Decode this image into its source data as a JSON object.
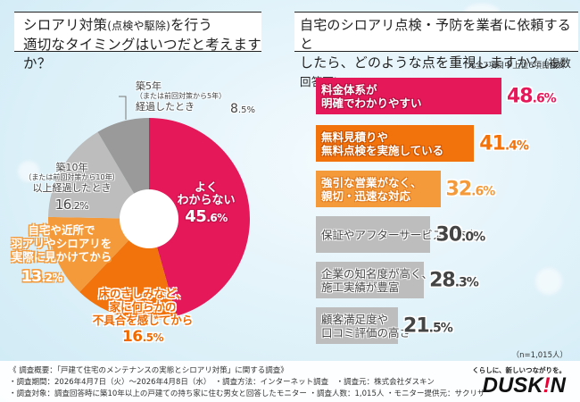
{
  "left_panel": {
    "title_line1_a": "シロアリ対策",
    "title_line1_paren": "(点検や駆除)",
    "title_line1_b": "を行う",
    "title_line2": "適切なタイミングはいつだと考えますか？"
  },
  "right_panel": {
    "title_line1": "自宅のシロアリ点検・予防を業者に依頼すると",
    "title_line2_a": "したら、どのような点を重視しますか？",
    "title_line2_paren": "(複数回答可)",
    "extract_note": "※全7項目中上位6項目抜粋",
    "sample_note": "（n=1,015人）"
  },
  "chart_data": [
    {
      "type": "pie",
      "title": "シロアリ対策(点検や駆除)を行う適切なタイミングはいつだと考えますか？",
      "donut": true,
      "start": "12 o'clock, clockwise",
      "unit": "%",
      "slices": [
        {
          "label_lines": [
            "よく",
            "わからない"
          ],
          "value": 45.6,
          "int": "45",
          "dec": ".6%",
          "color": "#e5185a"
        },
        {
          "label_lines": [
            "床のきしみなど、",
            "家に何らかの",
            "不具合を感じてから"
          ],
          "value": 16.5,
          "int": "16",
          "dec": ".5%",
          "color": "#f2720c"
        },
        {
          "label_lines": [
            "自宅や近所で",
            "羽アリやシロアリを",
            "実際に見かけてから"
          ],
          "value": 13.2,
          "int": "13",
          "dec": ".2%",
          "color": "#f59a3a"
        },
        {
          "label_lines": [
            "築10年",
            "（または前回対策から10年）",
            "以上経過したとき"
          ],
          "value": 16.2,
          "int": "16",
          "dec": ".2%",
          "color": "#bdbdbd"
        },
        {
          "label_lines": [
            "築5年",
            "（または前回対策から5年）",
            "経過したとき"
          ],
          "value": 8.5,
          "int": "8",
          "dec": ".5%",
          "color": "#9a9a9a"
        }
      ]
    },
    {
      "type": "bar",
      "orientation": "horizontal",
      "title": "自宅のシロアリ点検・予防を業者に依頼するとしたら、どのような点を重視しますか？(複数回答可)",
      "unit": "%",
      "xlim": [
        0,
        50
      ],
      "bars": [
        {
          "label_lines": [
            "料金体系が",
            "明確でわかりやすい"
          ],
          "value": 48.6,
          "int": "48",
          "dec": ".6%",
          "color": "#e5185a",
          "value_color": "#e5185a"
        },
        {
          "label_lines": [
            "無料見積りや",
            "無料点検を実施している"
          ],
          "value": 41.4,
          "int": "41",
          "dec": ".4%",
          "color": "#f2720c",
          "value_color": "#f2720c"
        },
        {
          "label_lines": [
            "強引な営業がなく、",
            "親切・迅速な対応"
          ],
          "value": 32.6,
          "int": "32",
          "dec": ".6%",
          "color": "#f59a3a",
          "value_color": "#f59a3a"
        },
        {
          "label_lines": [
            "保証やアフターサービスの充実"
          ],
          "value": 30.0,
          "int": "30",
          "dec": ".0%",
          "color": "#bdbdbd",
          "value_color": "#444444"
        },
        {
          "label_lines": [
            "企業の知名度が高く、",
            "施工実績が豊富"
          ],
          "value": 28.3,
          "int": "28",
          "dec": ".3%",
          "color": "#bdbdbd",
          "value_color": "#444444"
        },
        {
          "label_lines": [
            "顧客満足度や",
            "口コミ評価の高さ"
          ],
          "value": 21.5,
          "int": "21",
          "dec": ".5%",
          "color": "#bdbdbd",
          "value_color": "#444444"
        }
      ]
    }
  ],
  "footer": {
    "line1": "《 調査概要：「戸建て住宅のメンテナンスの実態とシロアリ対策」に関する調査》",
    "line2": "・調査期間：2026年4月7日（火）～2026年4月8日（水）　・調査方法：インターネット調査　・調査元：株式会社ダスキン",
    "line3": "・調査対象：調査回答時に築10年以上の戸建ての持ち家に住む男女と回答したモニター ・調査人数：1,015人 ・モニター提供元：サクリサ",
    "tagline": "くらしに、新しいつながりを。",
    "brand_a": "DUSK",
    "brand_bang": "!",
    "brand_b": "N"
  }
}
